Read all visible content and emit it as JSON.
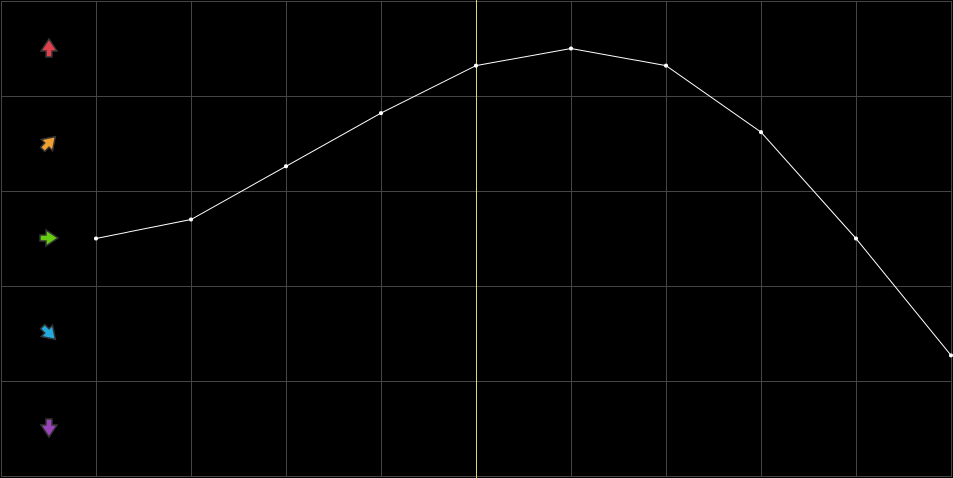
{
  "chart_data": {
    "type": "line",
    "title": "",
    "xlabel": "",
    "ylabel": "",
    "x": [
      1,
      2,
      3,
      4,
      5,
      6,
      7,
      8,
      9,
      10
    ],
    "values": [
      0,
      0.2,
      0.76,
      1.32,
      1.82,
      2.0,
      1.82,
      1.12,
      0,
      -1.23
    ],
    "xlim": [
      0,
      10
    ],
    "ylim": [
      -2.5,
      2.5
    ],
    "grid": true,
    "highlight_x": 5,
    "row_indicators": [
      {
        "icon": "arrow-up-icon",
        "angle": 0,
        "color": "#e0404c"
      },
      {
        "icon": "arrow-up-right-icon",
        "angle": 45,
        "color": "#f0a030"
      },
      {
        "icon": "arrow-right-icon",
        "angle": 90,
        "color": "#66cc11"
      },
      {
        "icon": "arrow-down-right-icon",
        "angle": 135,
        "color": "#22aadd"
      },
      {
        "icon": "arrow-down-icon",
        "angle": 180,
        "color": "#9944bb"
      }
    ],
    "colors": {
      "background": "#000000",
      "grid": "#444444",
      "line": "#ffffff",
      "highlight": "#d8d870"
    }
  }
}
